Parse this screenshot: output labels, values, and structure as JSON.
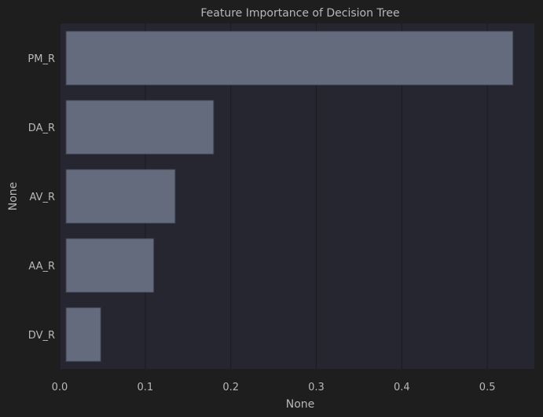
{
  "chart_data": {
    "type": "bar",
    "orientation": "horizontal",
    "title": "Feature Importance of Decision Tree",
    "xlabel": "None",
    "ylabel": "None",
    "categories": [
      "PM_R",
      "DA_R",
      "AV_R",
      "AA_R",
      "DV_R"
    ],
    "values": [
      0.53,
      0.18,
      0.135,
      0.11,
      0.048
    ],
    "xlim": [
      0,
      0.555
    ],
    "xticks": [
      0.0,
      0.1,
      0.2,
      0.3,
      0.4,
      0.5
    ],
    "xtick_labels": [
      "0.0",
      "0.1",
      "0.2",
      "0.3",
      "0.4",
      "0.5"
    ],
    "grid": true,
    "colors": {
      "figure_bg": "#1e1e1e",
      "plot_bg": "#262631",
      "bar_fill": "#636b7d",
      "bar_edge": "#3c3f47",
      "grid": "#1b1b22",
      "text": "#b8b8b8"
    }
  }
}
